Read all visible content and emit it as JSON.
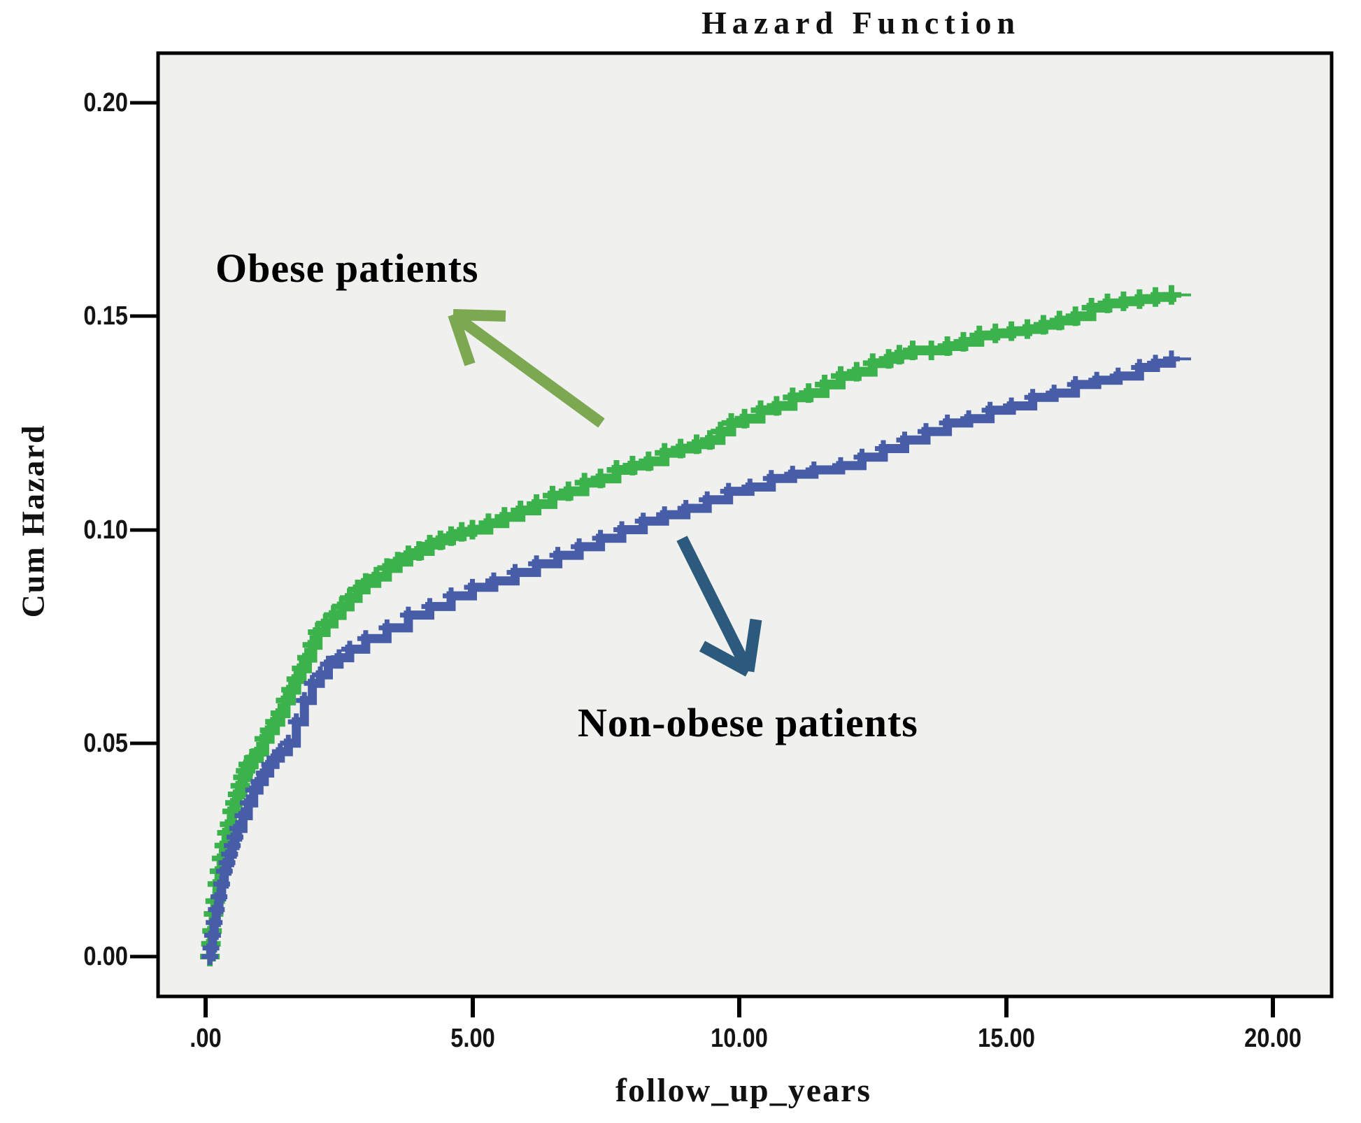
{
  "title": "Hazard Function",
  "y_axis": {
    "label": "Cum Hazard",
    "tick_labels": [
      "0.20",
      "0.15",
      "0.10",
      "0.05",
      "0.00"
    ],
    "tick_values": [
      0.2,
      0.15,
      0.1,
      0.05,
      0.0
    ]
  },
  "x_axis": {
    "label": "follow_up_years",
    "tick_labels": [
      ".00",
      "5.00",
      "10.00",
      "15.00",
      "20.00"
    ],
    "tick_values": [
      0,
      5,
      10,
      15,
      20
    ]
  },
  "annotations": {
    "obese": {
      "text": "Obese patients",
      "arrow_color": "#7ca852"
    },
    "non_obese": {
      "text": "Non-obese patients",
      "arrow_color": "#2b5a7d"
    }
  },
  "chart_data": {
    "type": "line",
    "title": "Hazard Function",
    "xlabel": "follow_up_years",
    "ylabel": "Cum Hazard",
    "xlim": [
      -0.9,
      21.1
    ],
    "ylim": [
      -0.01,
      0.212
    ],
    "x_ticks": [
      0,
      5,
      10,
      15,
      20
    ],
    "y_ticks": [
      0.0,
      0.05,
      0.1,
      0.15,
      0.2
    ],
    "grid": false,
    "legend": "none (series labeled by arrow annotations)",
    "plot_bg": "#f0f0ee",
    "frame_color": "#000000",
    "marker": "plus (censoring marks along step curve)",
    "series": [
      {
        "name": "Obese patients",
        "color": "#3cb24c",
        "style": "step-with-plus-markers",
        "points": [
          [
            0.08,
            0.0
          ],
          [
            0.1,
            0.003
          ],
          [
            0.12,
            0.006
          ],
          [
            0.15,
            0.01
          ],
          [
            0.18,
            0.013
          ],
          [
            0.22,
            0.017
          ],
          [
            0.26,
            0.02
          ],
          [
            0.3,
            0.023
          ],
          [
            0.35,
            0.026
          ],
          [
            0.4,
            0.029
          ],
          [
            0.45,
            0.031
          ],
          [
            0.5,
            0.034
          ],
          [
            0.55,
            0.036
          ],
          [
            0.6,
            0.038
          ],
          [
            0.65,
            0.04
          ],
          [
            0.7,
            0.042
          ],
          [
            0.75,
            0.0435
          ],
          [
            0.8,
            0.045
          ],
          [
            0.9,
            0.0465
          ],
          [
            1.0,
            0.048
          ],
          [
            1.1,
            0.051
          ],
          [
            1.2,
            0.053
          ],
          [
            1.3,
            0.055
          ],
          [
            1.4,
            0.057
          ],
          [
            1.5,
            0.06
          ],
          [
            1.6,
            0.0625
          ],
          [
            1.7,
            0.065
          ],
          [
            1.8,
            0.0675
          ],
          [
            1.9,
            0.07
          ],
          [
            2.0,
            0.073
          ],
          [
            2.1,
            0.076
          ],
          [
            2.25,
            0.078
          ],
          [
            2.4,
            0.08
          ],
          [
            2.55,
            0.082
          ],
          [
            2.7,
            0.084
          ],
          [
            2.85,
            0.086
          ],
          [
            3.0,
            0.0875
          ],
          [
            3.2,
            0.089
          ],
          [
            3.4,
            0.091
          ],
          [
            3.6,
            0.0925
          ],
          [
            3.8,
            0.094
          ],
          [
            4.0,
            0.095
          ],
          [
            4.2,
            0.0965
          ],
          [
            4.4,
            0.0975
          ],
          [
            4.6,
            0.0985
          ],
          [
            4.8,
            0.0995
          ],
          [
            5.0,
            0.1
          ],
          [
            5.3,
            0.1015
          ],
          [
            5.6,
            0.103
          ],
          [
            5.9,
            0.1045
          ],
          [
            6.2,
            0.106
          ],
          [
            6.5,
            0.108
          ],
          [
            6.8,
            0.109
          ],
          [
            7.1,
            0.111
          ],
          [
            7.4,
            0.112
          ],
          [
            7.7,
            0.114
          ],
          [
            8.0,
            0.115
          ],
          [
            8.3,
            0.116
          ],
          [
            8.6,
            0.118
          ],
          [
            8.9,
            0.119
          ],
          [
            9.2,
            0.12
          ],
          [
            9.45,
            0.121
          ],
          [
            9.65,
            0.123
          ],
          [
            9.85,
            0.125
          ],
          [
            10.1,
            0.126
          ],
          [
            10.4,
            0.128
          ],
          [
            10.7,
            0.129
          ],
          [
            11.0,
            0.131
          ],
          [
            11.3,
            0.132
          ],
          [
            11.6,
            0.134
          ],
          [
            11.9,
            0.136
          ],
          [
            12.2,
            0.137
          ],
          [
            12.5,
            0.139
          ],
          [
            12.8,
            0.14
          ],
          [
            13.0,
            0.141
          ],
          [
            13.25,
            0.142
          ],
          [
            13.6,
            0.142
          ],
          [
            13.9,
            0.143
          ],
          [
            14.2,
            0.144
          ],
          [
            14.5,
            0.1455
          ],
          [
            14.8,
            0.146
          ],
          [
            15.1,
            0.1465
          ],
          [
            15.4,
            0.147
          ],
          [
            15.7,
            0.148
          ],
          [
            16.0,
            0.149
          ],
          [
            16.3,
            0.15
          ],
          [
            16.6,
            0.152
          ],
          [
            16.9,
            0.153
          ],
          [
            17.2,
            0.1535
          ],
          [
            17.5,
            0.154
          ],
          [
            17.8,
            0.1545
          ],
          [
            18.1,
            0.155
          ]
        ]
      },
      {
        "name": "Non-obese patients",
        "color": "#475da7",
        "style": "step-with-plus-markers",
        "points": [
          [
            0.08,
            0.0
          ],
          [
            0.1,
            0.002
          ],
          [
            0.13,
            0.005
          ],
          [
            0.16,
            0.008
          ],
          [
            0.2,
            0.011
          ],
          [
            0.25,
            0.014
          ],
          [
            0.3,
            0.017
          ],
          [
            0.35,
            0.02
          ],
          [
            0.4,
            0.022
          ],
          [
            0.45,
            0.024
          ],
          [
            0.5,
            0.026
          ],
          [
            0.55,
            0.028
          ],
          [
            0.6,
            0.03
          ],
          [
            0.7,
            0.033
          ],
          [
            0.8,
            0.036
          ],
          [
            0.9,
            0.039
          ],
          [
            1.0,
            0.041
          ],
          [
            1.1,
            0.043
          ],
          [
            1.2,
            0.045
          ],
          [
            1.3,
            0.0465
          ],
          [
            1.4,
            0.048
          ],
          [
            1.55,
            0.05
          ],
          [
            1.7,
            0.055
          ],
          [
            1.85,
            0.06
          ],
          [
            2.0,
            0.064
          ],
          [
            2.15,
            0.066
          ],
          [
            2.3,
            0.0685
          ],
          [
            2.5,
            0.07
          ],
          [
            2.7,
            0.072
          ],
          [
            3.0,
            0.0745
          ],
          [
            3.4,
            0.077
          ],
          [
            3.8,
            0.08
          ],
          [
            4.2,
            0.082
          ],
          [
            4.6,
            0.0845
          ],
          [
            5.0,
            0.0865
          ],
          [
            5.4,
            0.088
          ],
          [
            5.8,
            0.09
          ],
          [
            6.2,
            0.092
          ],
          [
            6.6,
            0.094
          ],
          [
            7.0,
            0.096
          ],
          [
            7.4,
            0.098
          ],
          [
            7.8,
            0.1
          ],
          [
            8.2,
            0.102
          ],
          [
            8.6,
            0.1035
          ],
          [
            9.0,
            0.105
          ],
          [
            9.4,
            0.107
          ],
          [
            9.8,
            0.109
          ],
          [
            10.2,
            0.11
          ],
          [
            10.6,
            0.112
          ],
          [
            11.0,
            0.113
          ],
          [
            11.4,
            0.114
          ],
          [
            11.9,
            0.115
          ],
          [
            12.3,
            0.117
          ],
          [
            12.7,
            0.119
          ],
          [
            13.1,
            0.121
          ],
          [
            13.5,
            0.123
          ],
          [
            13.9,
            0.125
          ],
          [
            14.3,
            0.126
          ],
          [
            14.7,
            0.128
          ],
          [
            15.1,
            0.129
          ],
          [
            15.5,
            0.131
          ],
          [
            15.9,
            0.132
          ],
          [
            16.3,
            0.134
          ],
          [
            16.7,
            0.135
          ],
          [
            17.1,
            0.136
          ],
          [
            17.5,
            0.138
          ],
          [
            17.8,
            0.139
          ],
          [
            18.1,
            0.14
          ]
        ]
      }
    ]
  }
}
